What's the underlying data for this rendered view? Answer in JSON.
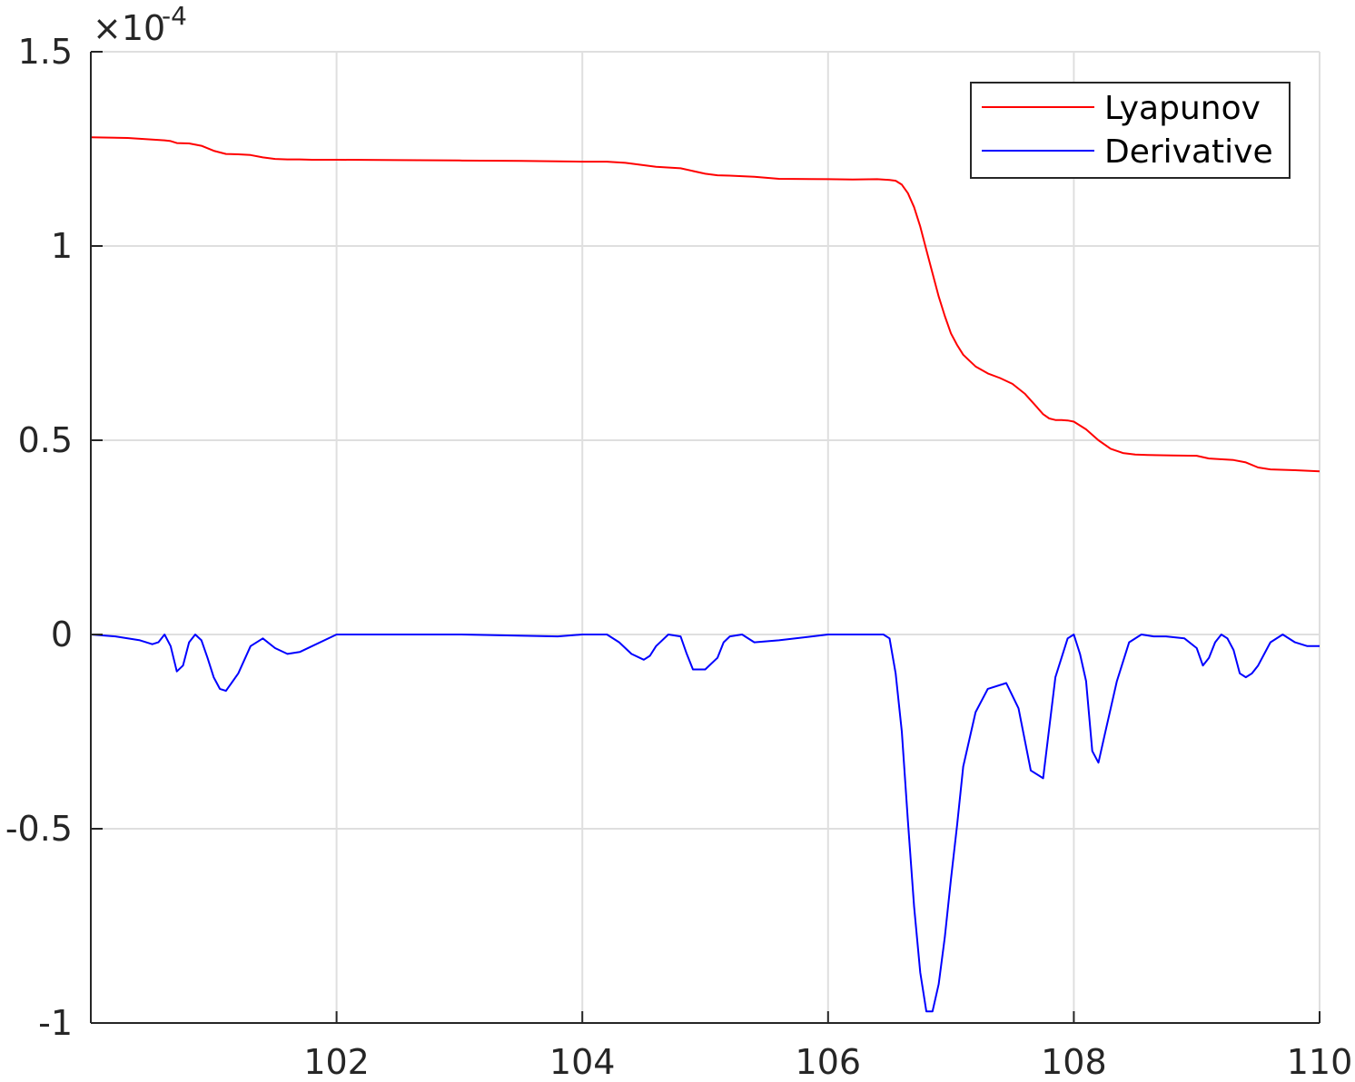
{
  "chart_data": {
    "type": "line",
    "title": "",
    "xlabel": "",
    "ylabel": "",
    "xlim": [
      100,
      110
    ],
    "ylim": [
      -1,
      1.5
    ],
    "y_exponent_label": {
      "base": "×10",
      "exponent": "-4"
    },
    "x_ticks": [
      102,
      104,
      106,
      108,
      110
    ],
    "x_tick_labels": [
      "102",
      "104",
      "106",
      "108",
      "110"
    ],
    "y_ticks": [
      -1,
      -0.5,
      0,
      0.5,
      1,
      1.5
    ],
    "y_tick_labels": [
      "-1",
      "-0.5",
      "0",
      "0.5",
      "1",
      "1.5"
    ],
    "grid": true,
    "legend_position": "top-right",
    "series": [
      {
        "name": "Lyapunov",
        "color": "#ff0000",
        "x": [
          100.0,
          100.3,
          100.6,
          100.65,
          100.7,
          100.8,
          100.9,
          101.0,
          101.1,
          101.2,
          101.3,
          101.4,
          101.5,
          101.6,
          101.7,
          101.8,
          102.0,
          102.5,
          103.0,
          103.5,
          104.0,
          104.2,
          104.35,
          104.5,
          104.6,
          104.8,
          105.0,
          105.1,
          105.2,
          105.4,
          105.6,
          106.0,
          106.2,
          106.4,
          106.5,
          106.55,
          106.6,
          106.65,
          106.7,
          106.75,
          106.8,
          106.85,
          106.9,
          106.95,
          107.0,
          107.05,
          107.1,
          107.15,
          107.2,
          107.3,
          107.4,
          107.5,
          107.6,
          107.7,
          107.75,
          107.8,
          107.85,
          107.9,
          107.95,
          108.0,
          108.1,
          108.2,
          108.3,
          108.4,
          108.5,
          108.6,
          108.8,
          109.0,
          109.1,
          109.3,
          109.4,
          109.5,
          109.6,
          109.8,
          110.0
        ],
        "values": [
          1.28,
          1.278,
          1.272,
          1.27,
          1.265,
          1.264,
          1.258,
          1.245,
          1.237,
          1.236,
          1.234,
          1.228,
          1.224,
          1.223,
          1.223,
          1.222,
          1.222,
          1.221,
          1.22,
          1.219,
          1.217,
          1.217,
          1.214,
          1.208,
          1.204,
          1.2,
          1.186,
          1.182,
          1.181,
          1.178,
          1.173,
          1.172,
          1.171,
          1.172,
          1.17,
          1.168,
          1.158,
          1.136,
          1.1,
          1.05,
          0.99,
          0.93,
          0.87,
          0.82,
          0.775,
          0.745,
          0.72,
          0.705,
          0.69,
          0.672,
          0.66,
          0.645,
          0.62,
          0.585,
          0.567,
          0.556,
          0.552,
          0.552,
          0.551,
          0.548,
          0.528,
          0.5,
          0.478,
          0.467,
          0.463,
          0.462,
          0.461,
          0.46,
          0.453,
          0.449,
          0.443,
          0.43,
          0.425,
          0.423,
          0.42
        ]
      },
      {
        "name": "Derivative",
        "color": "#0000ff",
        "x": [
          100.0,
          100.2,
          100.4,
          100.5,
          100.55,
          100.6,
          100.65,
          100.7,
          100.75,
          100.8,
          100.85,
          100.9,
          100.95,
          101.0,
          101.05,
          101.1,
          101.2,
          101.3,
          101.4,
          101.5,
          101.6,
          101.7,
          102.0,
          103.0,
          103.8,
          104.0,
          104.2,
          104.3,
          104.4,
          104.5,
          104.55,
          104.6,
          104.7,
          104.8,
          104.85,
          104.9,
          104.95,
          105.0,
          105.1,
          105.15,
          105.2,
          105.3,
          105.4,
          105.6,
          106.0,
          106.4,
          106.45,
          106.5,
          106.55,
          106.6,
          106.65,
          106.7,
          106.75,
          106.8,
          106.85,
          106.9,
          106.95,
          107.0,
          107.05,
          107.1,
          107.2,
          107.3,
          107.45,
          107.55,
          107.65,
          107.75,
          107.85,
          107.95,
          108.0,
          108.05,
          108.1,
          108.15,
          108.2,
          108.25,
          108.35,
          108.45,
          108.55,
          108.65,
          108.75,
          108.9,
          109.0,
          109.05,
          109.1,
          109.15,
          109.2,
          109.25,
          109.3,
          109.35,
          109.4,
          109.45,
          109.5,
          109.55,
          109.6,
          109.7,
          109.8,
          109.9,
          110.0
        ],
        "values": [
          0.0,
          -0.005,
          -0.015,
          -0.025,
          -0.02,
          0.0,
          -0.03,
          -0.095,
          -0.08,
          -0.02,
          0.0,
          -0.015,
          -0.06,
          -0.11,
          -0.14,
          -0.145,
          -0.1,
          -0.03,
          -0.01,
          -0.035,
          -0.05,
          -0.045,
          0.0,
          0.0,
          -0.005,
          0.0,
          0.0,
          -0.02,
          -0.05,
          -0.065,
          -0.055,
          -0.03,
          0.0,
          -0.005,
          -0.05,
          -0.09,
          -0.09,
          -0.09,
          -0.06,
          -0.02,
          -0.005,
          0.0,
          -0.02,
          -0.015,
          0.0,
          0.0,
          0.0,
          -0.01,
          -0.1,
          -0.25,
          -0.48,
          -0.7,
          -0.87,
          -0.97,
          -0.97,
          -0.9,
          -0.78,
          -0.63,
          -0.49,
          -0.34,
          -0.2,
          -0.14,
          -0.125,
          -0.19,
          -0.35,
          -0.37,
          -0.11,
          -0.01,
          0.0,
          -0.05,
          -0.12,
          -0.3,
          -0.33,
          -0.26,
          -0.12,
          -0.02,
          0.0,
          -0.005,
          -0.005,
          -0.01,
          -0.035,
          -0.08,
          -0.06,
          -0.02,
          0.0,
          -0.01,
          -0.04,
          -0.1,
          -0.11,
          -0.1,
          -0.08,
          -0.05,
          -0.02,
          0.0,
          -0.02,
          -0.03,
          -0.03
        ]
      }
    ]
  }
}
